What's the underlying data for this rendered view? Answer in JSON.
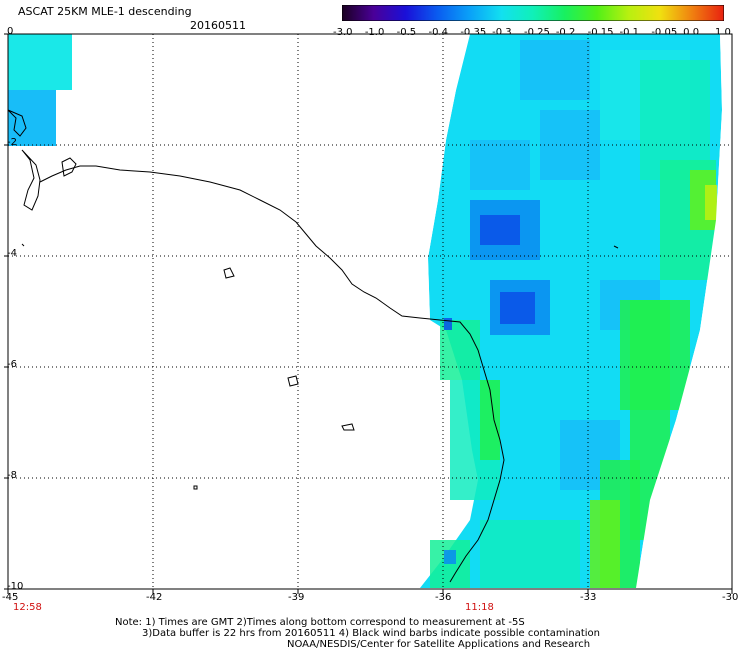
{
  "header": {
    "title": "ASCAT 25KM MLE-1 descending",
    "date": "20160511"
  },
  "colorbar": {
    "tick_labels": [
      "-3.0",
      "-1.0",
      "-0.5",
      "-0.4",
      "-0.35",
      "-0.3",
      "-0.25",
      "-0.2",
      "-0.15",
      "-0.1",
      "-0.05",
      "0.0",
      "1.0"
    ],
    "colors": [
      "#1a0020",
      "#4a0098",
      "#1a10d8",
      "#0a5cf0",
      "#0aa0f8",
      "#12e0f0",
      "#10f0b8",
      "#18f060",
      "#50f018",
      "#b8f010",
      "#f0e010",
      "#f08010",
      "#e82010"
    ]
  },
  "axes": {
    "y_labels": [
      "0",
      "-2",
      "-4",
      "-6",
      "-8",
      "-10"
    ],
    "x_labels": [
      "-45",
      "-42",
      "-39",
      "-36",
      "-33",
      "-30"
    ],
    "time_labels": [
      "12:58",
      "11:18"
    ]
  },
  "notes": {
    "line1": "Note: 1) Times are GMT 2)Times along bottom correspond to measurement at -5S",
    "line2": "3)Data buffer is 22 hrs from 20160511 4) Black wind barbs indicate possible contamination",
    "line3": "NOAA/NESDIS/Center for Satellite Applications and Research"
  },
  "styles": {
    "grid_color": "#000000",
    "coast_color": "#000000",
    "time_color": "#d01010"
  }
}
